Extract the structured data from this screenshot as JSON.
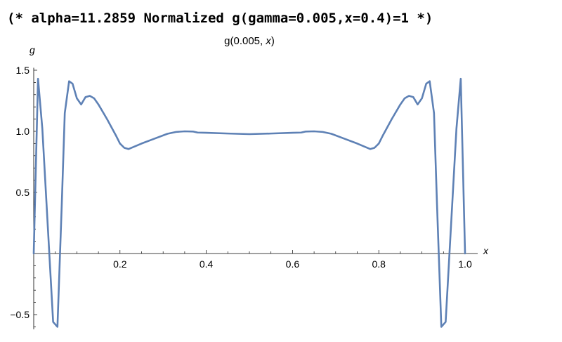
{
  "cell_comment": "(* alpha=11.2859 Normalized g(gamma=0.005,x=0.4)=1 *)",
  "colors": {
    "curve": "#5e81b5",
    "axis": "#000000"
  },
  "chart_data": {
    "type": "line",
    "title_prefix": "g(0.005, ",
    "title_var": "x",
    "title_suffix": ")",
    "xlabel": "x",
    "ylabel": "g",
    "xlim": [
      0,
      1
    ],
    "ylim": [
      -0.62,
      1.52
    ],
    "x_ticks": [
      {
        "value": 0.2,
        "label": "0.2"
      },
      {
        "value": 0.4,
        "label": "0.4"
      },
      {
        "value": 0.6,
        "label": "0.6"
      },
      {
        "value": 0.8,
        "label": "0.8"
      },
      {
        "value": 1.0,
        "label": "1.0"
      }
    ],
    "y_ticks": [
      {
        "value": -0.5,
        "label": "−0.5"
      },
      {
        "value": 0.5,
        "label": "0.5"
      },
      {
        "value": 1.0,
        "label": "1.0"
      },
      {
        "value": 1.5,
        "label": "1.5"
      }
    ],
    "grid": false,
    "series": [
      {
        "x": [
          0,
          0.01,
          0.02,
          0.045,
          0.055,
          0.065,
          0.072,
          0.082,
          0.09,
          0.1,
          0.11,
          0.12,
          0.13,
          0.14,
          0.15,
          0.17,
          0.19,
          0.2,
          0.21,
          0.22,
          0.25,
          0.28,
          0.31,
          0.33,
          0.35,
          0.37,
          0.38,
          0.4,
          0.45,
          0.5,
          0.55,
          0.6,
          0.62,
          0.63,
          0.65,
          0.67,
          0.69,
          0.72,
          0.75,
          0.78,
          0.79,
          0.8,
          0.81,
          0.83,
          0.85,
          0.86,
          0.87,
          0.88,
          0.89,
          0.9,
          0.91,
          0.918,
          0.928,
          0.935,
          0.945,
          0.955,
          0.98,
          0.99,
          1.0
        ],
        "y": [
          0,
          1.43,
          1.02,
          -0.56,
          -0.6,
          0.4,
          1.15,
          1.41,
          1.39,
          1.27,
          1.22,
          1.28,
          1.29,
          1.27,
          1.22,
          1.1,
          0.97,
          0.9,
          0.865,
          0.855,
          0.9,
          0.94,
          0.98,
          0.995,
          1.0,
          0.998,
          0.99,
          0.988,
          0.982,
          0.977,
          0.982,
          0.988,
          0.99,
          0.998,
          1.0,
          0.995,
          0.98,
          0.94,
          0.9,
          0.855,
          0.865,
          0.9,
          0.97,
          1.1,
          1.22,
          1.27,
          1.29,
          1.28,
          1.22,
          1.27,
          1.39,
          1.41,
          1.15,
          0.4,
          -0.6,
          -0.56,
          1.02,
          1.43,
          0
        ]
      }
    ]
  }
}
